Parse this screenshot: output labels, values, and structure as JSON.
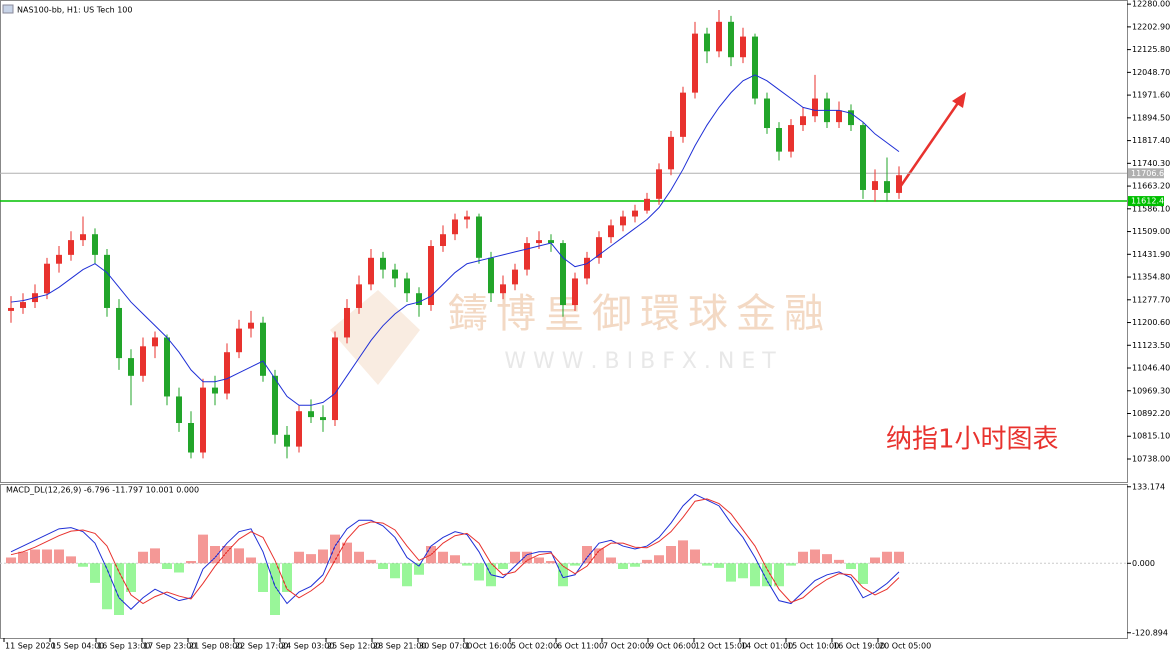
{
  "header": {
    "symbol": "NAS100-bb, H1: US Tech 100"
  },
  "chart_data": [
    {
      "type": "candlestick",
      "ylim": [
        10660,
        12294
      ],
      "yticks": [
        {
          "value": 12280,
          "label": "12280.00"
        },
        {
          "value": 12202.9,
          "label": "12202.90"
        },
        {
          "value": 12125.8,
          "label": "12125.80"
        },
        {
          "value": 12048.7,
          "label": "12048.70"
        },
        {
          "value": 11971.6,
          "label": "11971.60"
        },
        {
          "value": 11894.5,
          "label": "11894.50"
        },
        {
          "value": 11817.4,
          "label": "11817.40"
        },
        {
          "value": 11740.3,
          "label": "11740.30"
        },
        {
          "value": 11663.2,
          "label": "11663.20"
        },
        {
          "value": 11586.1,
          "label": "11586.10"
        },
        {
          "value": 11509,
          "label": "11509.00"
        },
        {
          "value": 11431.9,
          "label": "11431.90"
        },
        {
          "value": 11354.8,
          "label": "11354.80"
        },
        {
          "value": 11277.7,
          "label": "11277.70"
        },
        {
          "value": 11200.6,
          "label": "11200.60"
        },
        {
          "value": 11123.5,
          "label": "11123.50"
        },
        {
          "value": 11046.4,
          "label": "11046.40"
        },
        {
          "value": 10969.3,
          "label": "10969.30"
        },
        {
          "value": 10892.2,
          "label": "10892.20"
        },
        {
          "value": 10815.1,
          "label": "10815.10"
        },
        {
          "value": 10738,
          "label": "10738.00"
        }
      ],
      "up_color": "#e8322e",
      "down_color": "#22a52a",
      "ma_color": "#1f2fd6",
      "candles": [
        [
          11240,
          11290,
          11200,
          11250
        ],
        [
          11250,
          11300,
          11230,
          11270
        ],
        [
          11270,
          11330,
          11250,
          11300
        ],
        [
          11300,
          11420,
          11280,
          11400
        ],
        [
          11400,
          11460,
          11370,
          11430
        ],
        [
          11430,
          11510,
          11410,
          11480
        ],
        [
          11480,
          11560,
          11460,
          11500
        ],
        [
          11500,
          11520,
          11400,
          11430
        ],
        [
          11430,
          11450,
          11220,
          11250
        ],
        [
          11250,
          11280,
          11040,
          11080
        ],
        [
          11080,
          11110,
          10920,
          11020
        ],
        [
          11020,
          11150,
          11000,
          11120
        ],
        [
          11120,
          11170,
          11080,
          11150
        ],
        [
          11150,
          11160,
          10920,
          10950
        ],
        [
          10950,
          10980,
          10830,
          10860
        ],
        [
          10860,
          10900,
          10740,
          10760
        ],
        [
          10760,
          11010,
          10740,
          10980
        ],
        [
          10980,
          11020,
          10920,
          10960
        ],
        [
          10960,
          11130,
          10940,
          11100
        ],
        [
          11100,
          11210,
          11080,
          11180
        ],
        [
          11180,
          11240,
          11150,
          11200
        ],
        [
          11200,
          11220,
          11000,
          11020
        ],
        [
          11020,
          11040,
          10790,
          10820
        ],
        [
          10820,
          10850,
          10740,
          10780
        ],
        [
          10780,
          10920,
          10760,
          10900
        ],
        [
          10900,
          10940,
          10860,
          10880
        ],
        [
          10880,
          10920,
          10830,
          10870
        ],
        [
          10870,
          11170,
          10850,
          11150
        ],
        [
          11150,
          11280,
          11130,
          11250
        ],
        [
          11250,
          11360,
          11230,
          11330
        ],
        [
          11330,
          11450,
          11310,
          11420
        ],
        [
          11420,
          11440,
          11350,
          11380
        ],
        [
          11380,
          11400,
          11320,
          11350
        ],
        [
          11350,
          11370,
          11270,
          11300
        ],
        [
          11300,
          11320,
          11220,
          11260
        ],
        [
          11260,
          11480,
          11240,
          11460
        ],
        [
          11460,
          11530,
          11440,
          11500
        ],
        [
          11500,
          11570,
          11480,
          11550
        ],
        [
          11550,
          11580,
          11520,
          11560
        ],
        [
          11560,
          11570,
          11400,
          11420
        ],
        [
          11420,
          11440,
          11270,
          11300
        ],
        [
          11300,
          11360,
          11280,
          11330
        ],
        [
          11330,
          11400,
          11310,
          11380
        ],
        [
          11380,
          11490,
          11360,
          11470
        ],
        [
          11470,
          11510,
          11450,
          11480
        ],
        [
          11480,
          11500,
          11440,
          11470
        ],
        [
          11470,
          11480,
          11220,
          11260
        ],
        [
          11260,
          11370,
          11240,
          11350
        ],
        [
          11350,
          11440,
          11330,
          11420
        ],
        [
          11420,
          11510,
          11400,
          11490
        ],
        [
          11490,
          11550,
          11470,
          11530
        ],
        [
          11530,
          11580,
          11510,
          11560
        ],
        [
          11560,
          11600,
          11540,
          11580
        ],
        [
          11580,
          11640,
          11570,
          11620
        ],
        [
          11620,
          11740,
          11600,
          11720
        ],
        [
          11720,
          11850,
          11700,
          11830
        ],
        [
          11830,
          12000,
          11810,
          11980
        ],
        [
          11980,
          12220,
          11960,
          12180
        ],
        [
          12180,
          12200,
          12080,
          12120
        ],
        [
          12120,
          12260,
          12100,
          12220
        ],
        [
          12220,
          12240,
          12070,
          12100
        ],
        [
          12100,
          12200,
          12080,
          12170
        ],
        [
          12170,
          12180,
          11940,
          11960
        ],
        [
          11960,
          11980,
          11840,
          11860
        ],
        [
          11860,
          11880,
          11750,
          11780
        ],
        [
          11780,
          11890,
          11760,
          11870
        ],
        [
          11870,
          11930,
          11850,
          11900
        ],
        [
          11900,
          12040,
          11880,
          11960
        ],
        [
          11960,
          11980,
          11860,
          11880
        ],
        [
          11880,
          11950,
          11860,
          11920
        ],
        [
          11920,
          11940,
          11850,
          11870
        ],
        [
          11870,
          11880,
          11620,
          11650
        ],
        [
          11650,
          11720,
          11610,
          11680
        ],
        [
          11680,
          11760,
          11610,
          11640
        ],
        [
          11640,
          11730,
          11620,
          11700
        ]
      ],
      "ma": [
        11270,
        11275,
        11285,
        11295,
        11320,
        11350,
        11380,
        11400,
        11370,
        11320,
        11270,
        11230,
        11190,
        11150,
        11100,
        11040,
        11000,
        11000,
        11010,
        11030,
        11050,
        11070,
        11010,
        10950,
        10920,
        10920,
        10930,
        10960,
        11020,
        11080,
        11140,
        11190,
        11230,
        11260,
        11270,
        11290,
        11330,
        11370,
        11400,
        11410,
        11420,
        11430,
        11440,
        11450,
        11460,
        11470,
        11420,
        11390,
        11400,
        11430,
        11460,
        11490,
        11520,
        11550,
        11590,
        11650,
        11720,
        11800,
        11870,
        11930,
        11980,
        12020,
        12040,
        12020,
        11990,
        11960,
        11930,
        11920,
        11920,
        11920,
        11910,
        11880,
        11840,
        11810,
        11780
      ],
      "price_lines": [
        {
          "value": 11706.6,
          "label": "11706.60",
          "color": "#b0b0b0"
        },
        {
          "value": 11612.42,
          "label": "11612.42",
          "color": "#00c000"
        }
      ]
    },
    {
      "type": "macd",
      "title": "MACD_DL(12,26,9) -6.796 -11.797 10.001 0.000",
      "ylim": [
        -130,
        138
      ],
      "yticks": [
        133.174,
        {
          "value": 0,
          "label": "0.000"
        },
        -120.894
      ],
      "pos_color": "#e8322e",
      "neg_color": "#33ee33",
      "macd_color": "#1f2fd6",
      "signal_color": "#e8322e",
      "hist": [
        10,
        20,
        24,
        24,
        24,
        12,
        -6,
        -34,
        -80,
        -90,
        -50,
        20,
        26,
        -10,
        -16,
        4,
        50,
        30,
        30,
        26,
        10,
        -50,
        -90,
        -50,
        20,
        16,
        24,
        50,
        36,
        20,
        6,
        -10,
        -26,
        -40,
        -20,
        30,
        20,
        14,
        -4,
        -30,
        -40,
        -10,
        20,
        20,
        10,
        4,
        -40,
        -4,
        30,
        26,
        10,
        -10,
        -6,
        6,
        14,
        30,
        40,
        24,
        -4,
        -8,
        -32,
        -26,
        -40,
        -40,
        -40,
        -4,
        20,
        24,
        16,
        6,
        -10,
        -36,
        10,
        20,
        20
      ],
      "macd": [
        20,
        30,
        40,
        50,
        60,
        62,
        55,
        35,
        -10,
        -60,
        -80,
        -60,
        -45,
        -55,
        -65,
        -60,
        -10,
        10,
        35,
        55,
        60,
        20,
        -40,
        -70,
        -50,
        -40,
        -20,
        30,
        60,
        75,
        75,
        65,
        45,
        10,
        -5,
        30,
        45,
        55,
        50,
        20,
        -20,
        -25,
        -5,
        15,
        20,
        20,
        -25,
        -20,
        10,
        35,
        40,
        30,
        25,
        30,
        45,
        70,
        100,
        120,
        110,
        100,
        70,
        45,
        10,
        -30,
        -65,
        -70,
        -50,
        -30,
        -20,
        -15,
        -25,
        -60,
        -50,
        -35,
        -15
      ],
      "signal": [
        15,
        20,
        28,
        38,
        48,
        56,
        58,
        52,
        30,
        -15,
        -55,
        -70,
        -58,
        -50,
        -57,
        -62,
        -35,
        -5,
        20,
        42,
        55,
        45,
        5,
        -45,
        -60,
        -48,
        -32,
        5,
        42,
        65,
        72,
        70,
        58,
        30,
        5,
        15,
        35,
        48,
        52,
        35,
        0,
        -20,
        -15,
        5,
        15,
        18,
        -5,
        -18,
        -5,
        22,
        35,
        35,
        28,
        27,
        38,
        55,
        80,
        108,
        112,
        104,
        86,
        58,
        30,
        -10,
        -45,
        -68,
        -60,
        -42,
        -28,
        -18,
        -20,
        -42,
        -55,
        -45,
        -25
      ]
    }
  ],
  "x_labels": [
    "11 Sep 2020",
    "15 Sep 04:00",
    "16 Sep 13:00",
    "17 Sep 23:00",
    "21 Sep 08:00",
    "22 Sep 17:00",
    "24 Sep 03:00",
    "25 Sep 12:00",
    "28 Sep 21:00",
    "30 Sep 07:00",
    "1 Oct 16:00",
    "5 Oct 02:00",
    "6 Oct 11:00",
    "7 Oct 20:00",
    "9 Oct 06:00",
    "12 Oct 15:00",
    "14 Oct 01:00",
    "15 Oct 10:00",
    "16 Oct 19:00",
    "20 Oct 05:00"
  ],
  "watermark": {
    "name": "鑄博皇御環球金融",
    "url": "W W W . B I B F X . N E T"
  },
  "annotation": "纳指1小时图表"
}
